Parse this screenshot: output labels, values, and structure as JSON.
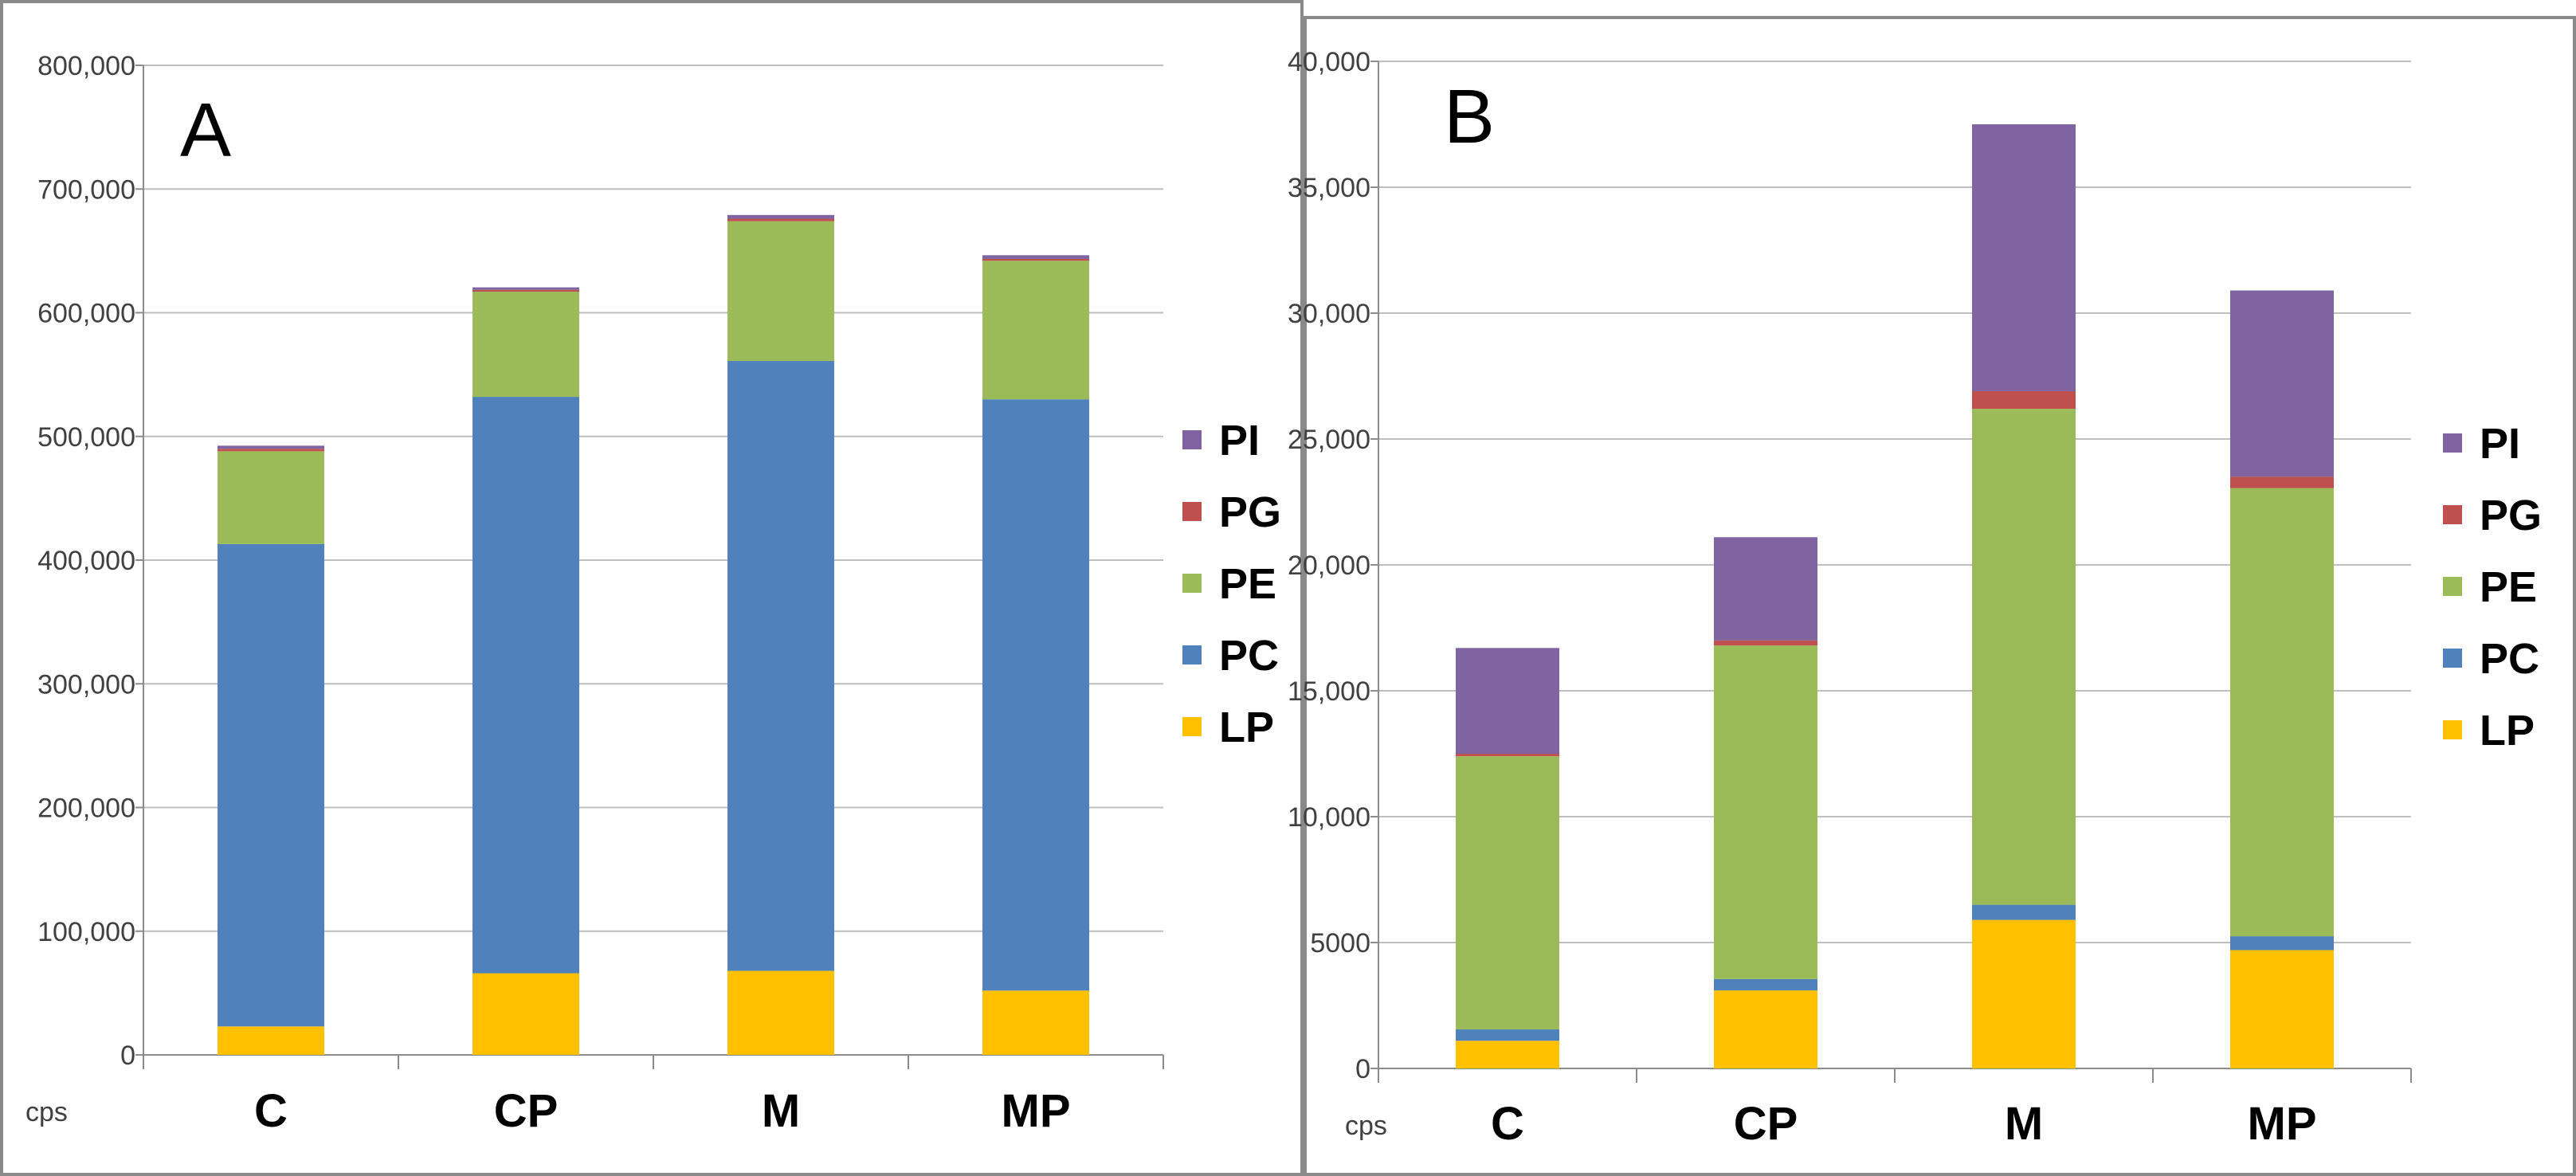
{
  "chart_data": [
    {
      "type": "bar",
      "stacked": true,
      "title": "A",
      "unit_label": "cps",
      "categories": [
        "C",
        "CP",
        "M",
        "MP"
      ],
      "ylim": [
        0,
        800000
      ],
      "yticks": [
        0,
        100000,
        200000,
        300000,
        400000,
        500000,
        600000,
        700000,
        800000
      ],
      "ytick_labels": [
        "0",
        "100,000",
        "200,000",
        "300,000",
        "400,000",
        "500,000",
        "600,000",
        "700,000",
        "800,000"
      ],
      "grid": true,
      "legend_position": "right",
      "series": [
        {
          "name": "LP",
          "color": "#FFC000",
          "values": [
            23000,
            66000,
            68000,
            52000
          ]
        },
        {
          "name": "PC",
          "color": "#4F81BD",
          "values": [
            390000,
            466000,
            493000,
            478000
          ]
        },
        {
          "name": "PE",
          "color": "#9BBB59",
          "values": [
            75000,
            85000,
            113000,
            112000
          ]
        },
        {
          "name": "PG",
          "color": "#C0504D",
          "values": [
            2000,
            1500,
            2000,
            1500
          ]
        },
        {
          "name": "PI",
          "color": "#8064A2",
          "values": [
            2500,
            2000,
            3000,
            3000
          ]
        }
      ]
    },
    {
      "type": "bar",
      "stacked": true,
      "title": "B",
      "unit_label": "cps",
      "categories": [
        "C",
        "CP",
        "M",
        "MP"
      ],
      "ylim": [
        0,
        40000
      ],
      "yticks": [
        0,
        5000,
        10000,
        15000,
        20000,
        25000,
        30000,
        35000,
        40000
      ],
      "ytick_labels": [
        "0",
        "5000",
        "10,000",
        "15,000",
        "20,000",
        "25,000",
        "30,000",
        "35,000",
        "40,000"
      ],
      "grid": true,
      "legend_position": "right",
      "series": [
        {
          "name": "LP",
          "color": "#FFC000",
          "values": [
            1100,
            3100,
            5900,
            4700
          ]
        },
        {
          "name": "PC",
          "color": "#4F81BD",
          "values": [
            450,
            450,
            600,
            550
          ]
        },
        {
          "name": "PE",
          "color": "#9BBB59",
          "values": [
            10850,
            13250,
            19700,
            17800
          ]
        },
        {
          "name": "PG",
          "color": "#C0504D",
          "values": [
            100,
            200,
            700,
            450
          ]
        },
        {
          "name": "PI",
          "color": "#8064A2",
          "values": [
            4200,
            4100,
            10600,
            7400
          ]
        }
      ]
    }
  ]
}
